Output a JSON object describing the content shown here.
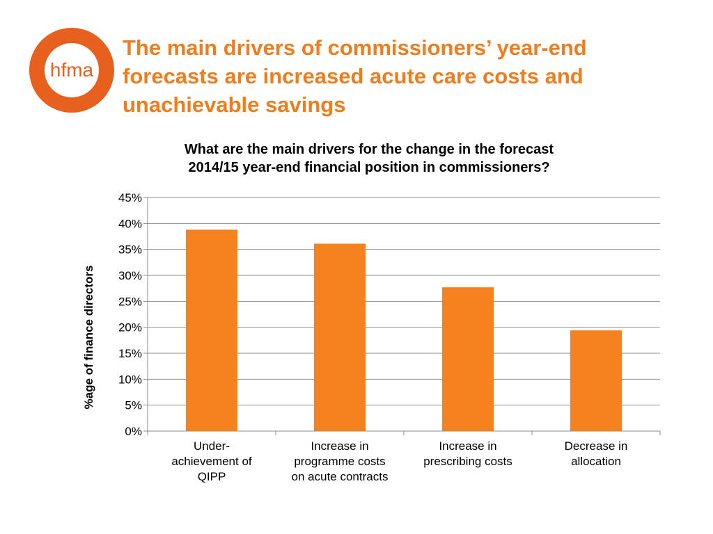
{
  "logo": {
    "text": "hfma",
    "color": "#e8601e"
  },
  "headline": {
    "lines": [
      "The main drivers of commissioners’ year-end",
      "forecasts are increased acute care costs and",
      "unachievable savings"
    ],
    "color": "#ee7d1e"
  },
  "chart_data": {
    "type": "bar",
    "title_lines": [
      "What are the main drivers for the change in the forecast",
      "2014/15 year-end financial position in commissioners?"
    ],
    "ylabel": "%age of finance directors",
    "xlabel": "",
    "categories": [
      [
        "Under-",
        "achievement of",
        "QIPP"
      ],
      [
        "Increase in",
        "programme costs",
        "on acute contracts"
      ],
      [
        "Increase in",
        "prescribing costs"
      ],
      [
        "Decrease in",
        "allocation"
      ]
    ],
    "values": [
      38.8,
      36.1,
      27.7,
      19.4
    ],
    "ylim": [
      0,
      45
    ],
    "yticks": [
      "0%",
      "5%",
      "10%",
      "15%",
      "20%",
      "25%",
      "30%",
      "35%",
      "40%",
      "45%"
    ],
    "ytick_values": [
      0,
      5,
      10,
      15,
      20,
      25,
      30,
      35,
      40,
      45
    ],
    "grid": true,
    "bar_color": "#f5821f"
  }
}
